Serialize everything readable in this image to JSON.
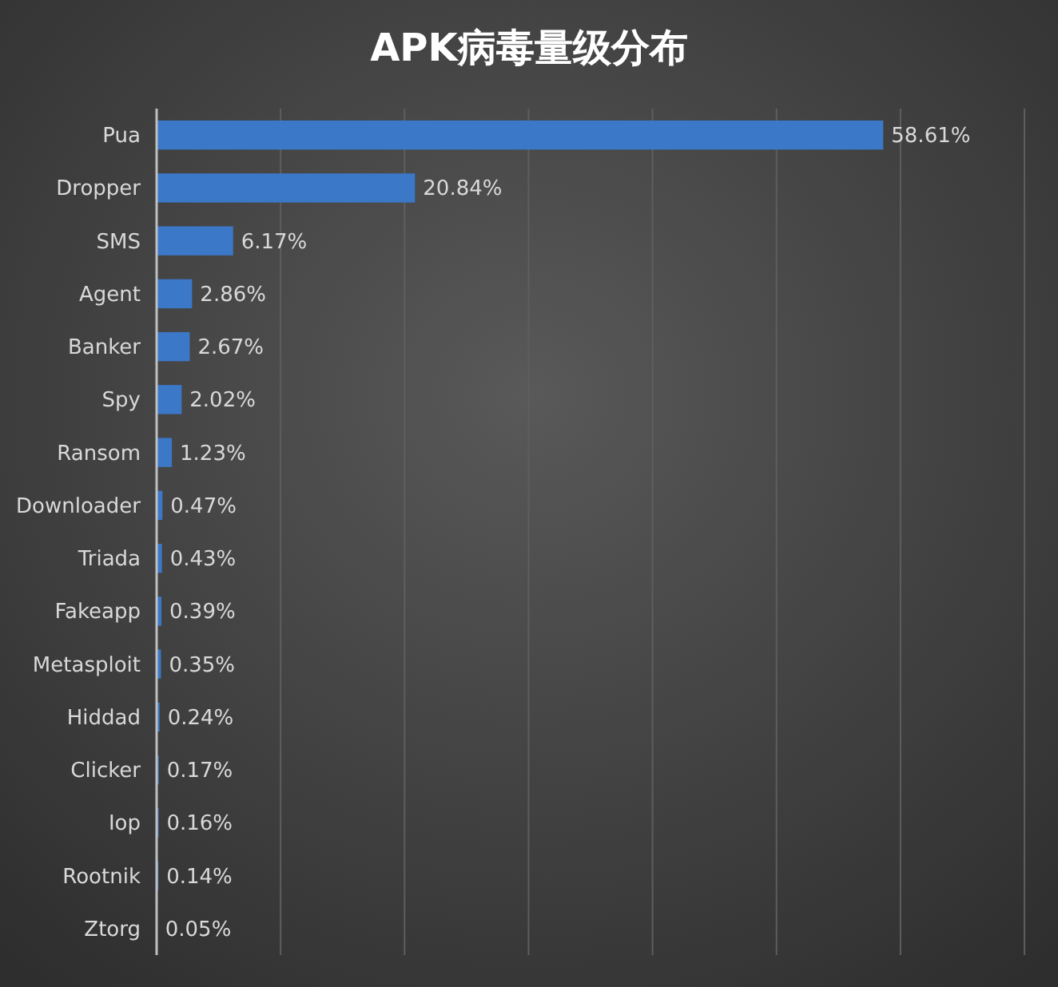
{
  "chart_data": {
    "type": "bar",
    "orientation": "horizontal",
    "title": "APK病毒量级分布",
    "categories": [
      "Pua",
      "Dropper",
      "SMS",
      "Agent",
      "Banker",
      "Spy",
      "Ransom",
      "Downloader",
      "Triada",
      "Fakeapp",
      "Metasploit",
      "Hiddad",
      "Clicker",
      "Iop",
      "Rootnik",
      "Ztorg"
    ],
    "values": [
      58.61,
      20.84,
      6.17,
      2.86,
      2.67,
      2.02,
      1.23,
      0.47,
      0.43,
      0.39,
      0.35,
      0.24,
      0.17,
      0.16,
      0.14,
      0.05
    ],
    "value_labels": [
      "58.61%",
      "20.84%",
      "6.17%",
      "2.86%",
      "2.67%",
      "2.02%",
      "1.23%",
      "0.47%",
      "0.43%",
      "0.39%",
      "0.35%",
      "0.24%",
      "0.17%",
      "0.16%",
      "0.14%",
      "0.05%"
    ],
    "color": "#3b78c8",
    "xlim": [
      0,
      70
    ],
    "xticks": [
      {
        "value": 0,
        "label": null
      },
      {
        "value": 10,
        "label": null
      },
      {
        "value": 20,
        "label": null
      },
      {
        "value": 30,
        "label": null
      },
      {
        "value": 40,
        "label": null
      },
      {
        "value": 50,
        "label": null
      },
      {
        "value": 60,
        "label": null
      },
      {
        "value": 70,
        "label": null
      }
    ],
    "grid": "x",
    "tick_labels": "y"
  }
}
